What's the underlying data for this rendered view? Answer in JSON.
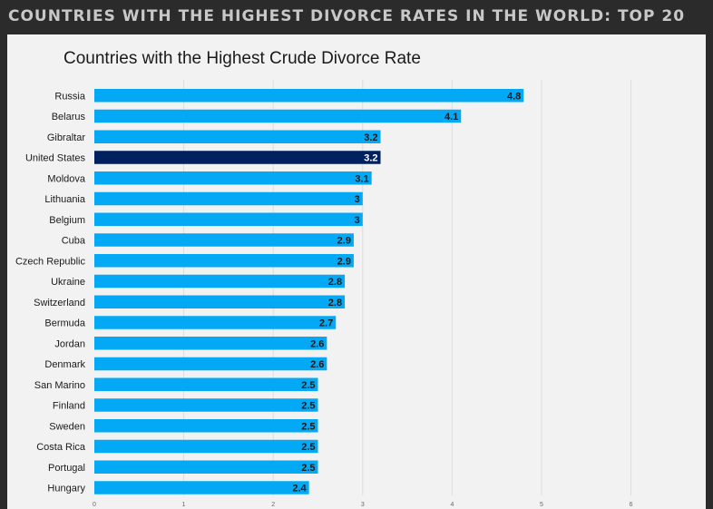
{
  "header": {
    "title": "COUNTRIES WITH THE HIGHEST DIVORCE RATES IN THE WORLD: TOP 20"
  },
  "colors": {
    "bar": "#03a9f4",
    "highlight": "#002060",
    "value_text_default": "#1a1a1a",
    "value_text_highlight": "#ffffff",
    "grid": "#dddddd"
  },
  "chart_data": {
    "type": "bar",
    "orientation": "horizontal",
    "title": "Countries with the Highest Crude Divorce Rate",
    "categories": [
      "Russia",
      "Belarus",
      "Gibraltar",
      "United States",
      "Moldova",
      "Lithuania",
      "Belgium",
      "Cuba",
      "Czech Republic",
      "Ukraine",
      "Switzerland",
      "Bermuda",
      "Jordan",
      "Denmark",
      "San Marino",
      "Finland",
      "Sweden",
      "Costa Rica",
      "Portugal",
      "Hungary"
    ],
    "values": [
      4.8,
      4.1,
      3.2,
      3.2,
      3.1,
      3,
      3,
      2.9,
      2.9,
      2.8,
      2.8,
      2.7,
      2.6,
      2.6,
      2.5,
      2.5,
      2.5,
      2.5,
      2.5,
      2.4
    ],
    "highlight": "United States",
    "xlim": [
      0,
      6
    ],
    "xticks": [
      "0",
      "1",
      "2",
      "3",
      "4",
      "5",
      "6"
    ],
    "xlabel": "",
    "ylabel": "",
    "grid": true,
    "legend": "none"
  }
}
